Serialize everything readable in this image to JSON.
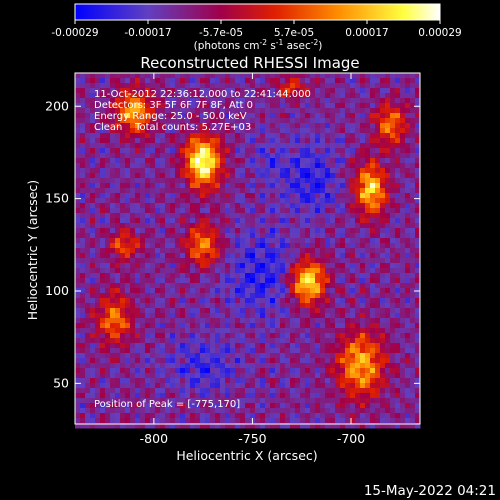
{
  "colorbar": {
    "ticks": [
      "-0.00029",
      "-0.00017",
      "-5.7e-05",
      "5.7e-05",
      "0.00017",
      "0.00029"
    ],
    "units_main": "(photons cm",
    "units_exp1": "-2",
    "units_mid": " s",
    "units_exp2": "-1",
    "units_mid2": " asec",
    "units_exp3": "-2",
    "units_end": ")"
  },
  "chart_data": {
    "type": "heatmap",
    "title": "Reconstructed RHESSI Image",
    "xlabel": "Heliocentric X (arcsec)",
    "ylabel": "Heliocentric Y (arcsec)",
    "xlim": [
      -840,
      -665
    ],
    "ylim": [
      28,
      218
    ],
    "x_ticks": [
      "-800",
      "-750",
      "-700"
    ],
    "y_ticks": [
      "50",
      "100",
      "150",
      "200"
    ],
    "x_tick_values": [
      -800,
      -750,
      -700
    ],
    "y_tick_values": [
      50,
      100,
      150,
      200
    ],
    "value_range": [
      -0.00029,
      0.00029
    ],
    "colormap": [
      "#0000ff",
      "#6040c0",
      "#a0004a",
      "#e02000",
      "#ff8c00",
      "#ffff40",
      "#ffffff"
    ],
    "bright_sources": [
      {
        "x": -775,
        "y": 170,
        "amp": 1.0,
        "sx": 9,
        "sy": 14
      },
      {
        "x": -810,
        "y": 197,
        "amp": 0.7,
        "sx": 10,
        "sy": 12
      },
      {
        "x": -722,
        "y": 105,
        "amp": 0.9,
        "sx": 9,
        "sy": 12
      },
      {
        "x": -690,
        "y": 155,
        "amp": 0.8,
        "sx": 8,
        "sy": 14
      },
      {
        "x": -775,
        "y": 125,
        "amp": 0.55,
        "sx": 9,
        "sy": 12
      },
      {
        "x": -820,
        "y": 85,
        "amp": 0.55,
        "sx": 9,
        "sy": 14
      },
      {
        "x": -695,
        "y": 60,
        "amp": 0.7,
        "sx": 12,
        "sy": 18
      },
      {
        "x": -815,
        "y": 125,
        "amp": 0.45,
        "sx": 8,
        "sy": 8
      },
      {
        "x": -730,
        "y": 210,
        "amp": 0.4,
        "sx": 8,
        "sy": 6
      },
      {
        "x": -680,
        "y": 190,
        "amp": 0.55,
        "sx": 8,
        "sy": 12
      }
    ],
    "dark_regions": [
      {
        "x": -745,
        "y": 110,
        "amp": 0.9,
        "sx": 18,
        "sy": 22
      },
      {
        "x": -720,
        "y": 160,
        "amp": 0.8,
        "sx": 14,
        "sy": 20
      },
      {
        "x": -775,
        "y": 60,
        "amp": 0.7,
        "sx": 18,
        "sy": 14
      },
      {
        "x": -740,
        "y": 170,
        "amp": 0.5,
        "sx": 10,
        "sy": 14
      }
    ],
    "annotations": {
      "line1": "11-Oct-2012 22:36:12.000 to 22:41:44.000",
      "line2": "Detectors: 3F 5F 6F 7F 8F, Att 0",
      "line3": "Energy Range: 25.0 - 50.0 keV",
      "line4": "Clean    Total counts: 5.27E+03",
      "peak": "Position of Peak = [-775,170]"
    }
  },
  "footer": {
    "timestamp": "15-May-2022 04:21"
  }
}
